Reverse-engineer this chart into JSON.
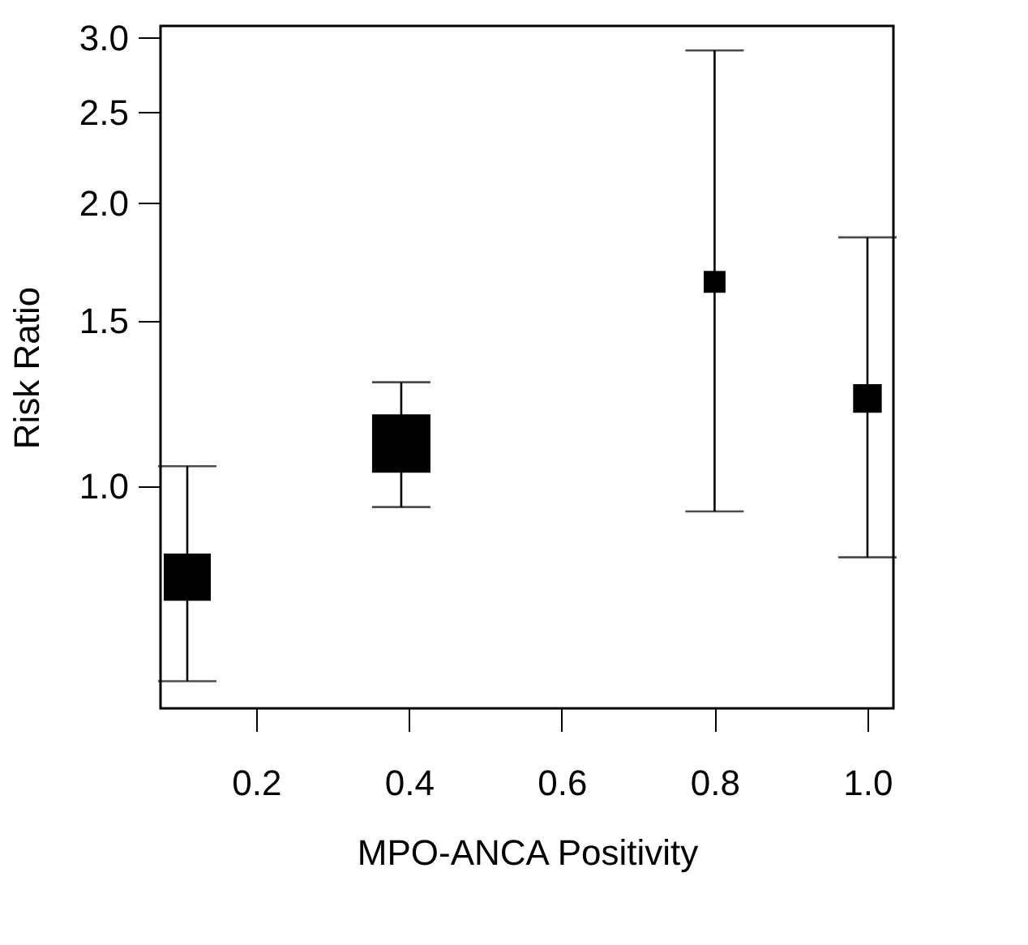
{
  "chart_data": {
    "type": "bubble",
    "xlabel": "MPO-ANCA Positivity",
    "ylabel": "Risk Ratio",
    "x": [
      0.11,
      0.39,
      0.8,
      1.0
    ],
    "values": [
      0.8,
      1.11,
      1.65,
      1.24
    ],
    "errors": [
      [
        0.62,
        1.05
      ],
      [
        0.95,
        1.29
      ],
      [
        0.94,
        2.91
      ],
      [
        0.84,
        1.84
      ]
    ],
    "sizes": [
      0.65,
      1,
      0.14,
      0.24
    ],
    "color": "#000000",
    "marker": "square",
    "log": "y",
    "grid": false,
    "xlim": [
      0.075,
      1.034
    ],
    "xticks": [
      0.2,
      0.4,
      0.6,
      0.8,
      {
        "value": 1,
        "label": "1.0"
      }
    ],
    "ylim": [
      0.58,
      3.09
    ],
    "yticks": [
      {
        "value": 1,
        "label": "1.0"
      },
      1.5,
      {
        "value": 2,
        "label": "2.0"
      },
      2.5,
      {
        "value": 3,
        "label": "3.0"
      }
    ]
  }
}
